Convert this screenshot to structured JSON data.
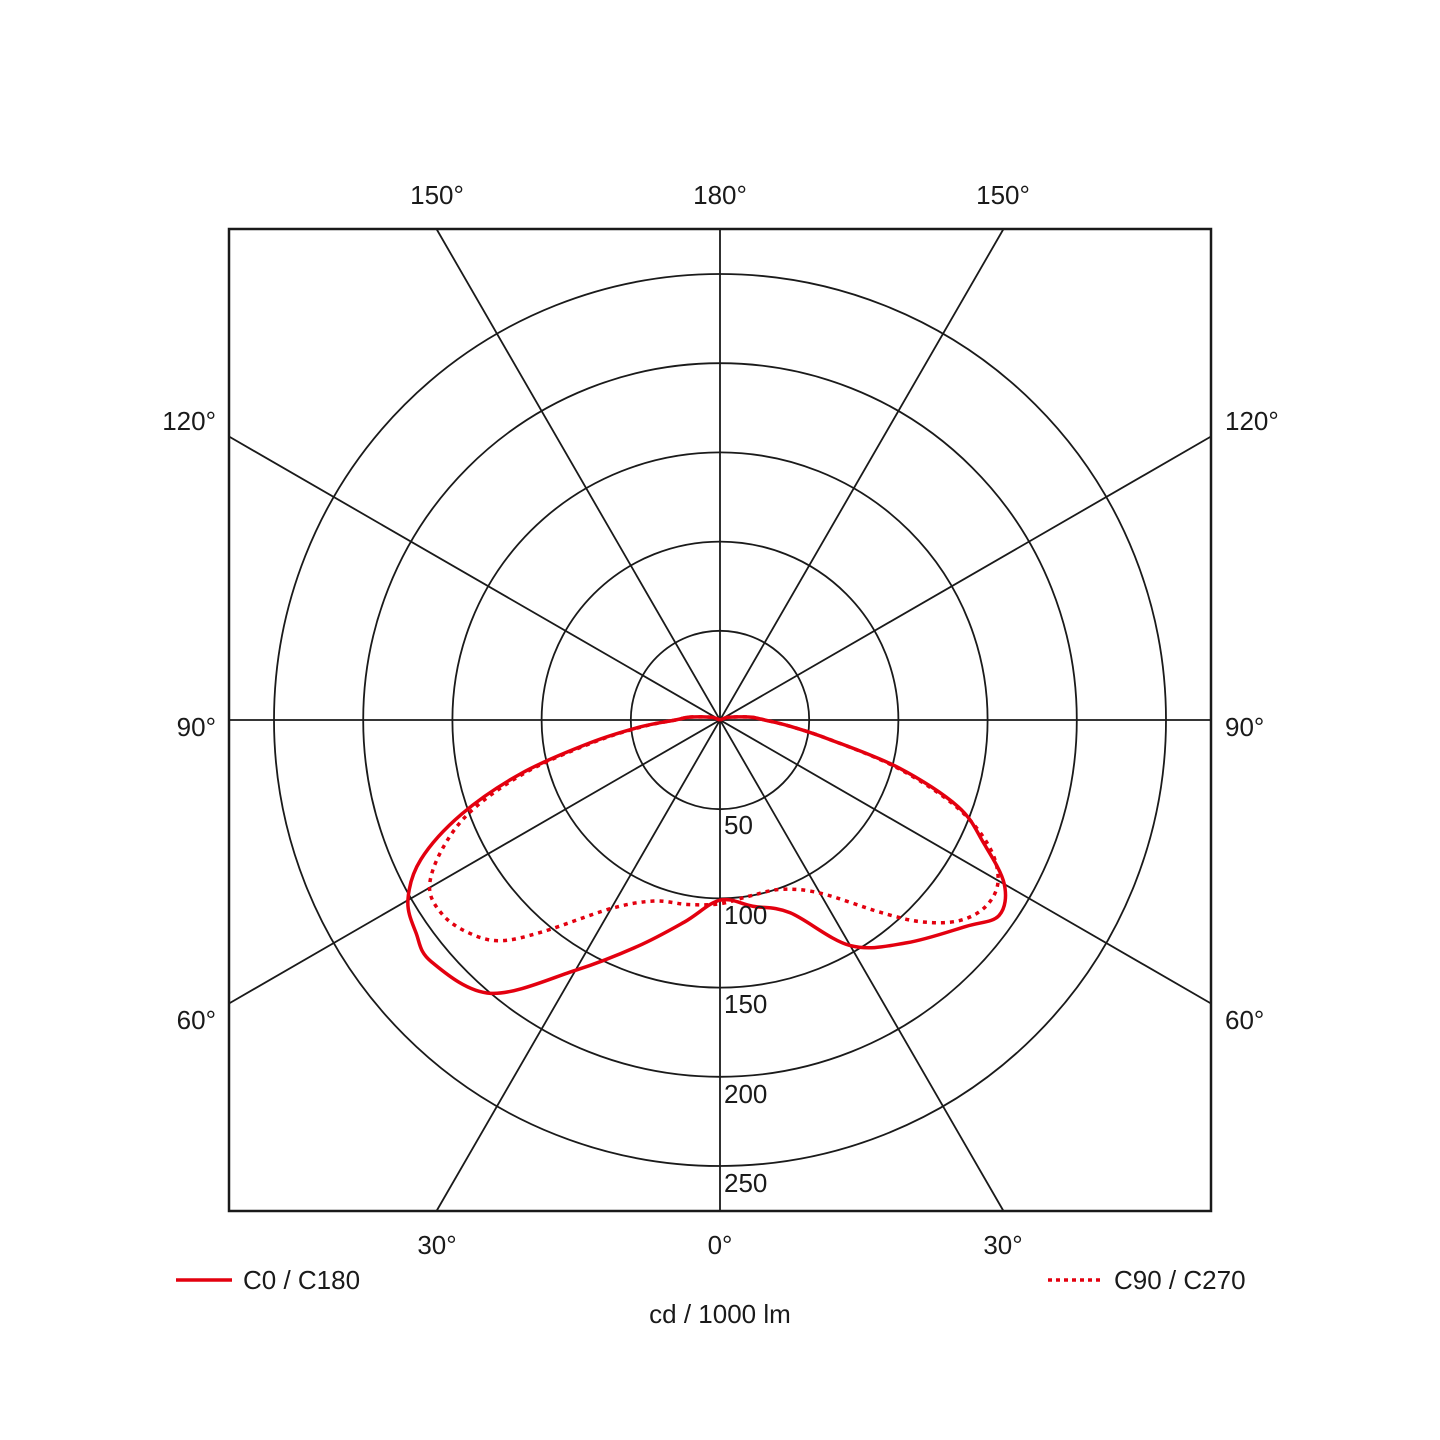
{
  "chart_data": {
    "type": "polar",
    "unit_label": "cd / 1000 lm",
    "radial_ticks": [
      50,
      100,
      150,
      200,
      250
    ],
    "radial_max": 275,
    "angle_labels": {
      "top": [
        "150°",
        "180°",
        "150°"
      ],
      "left": [
        "120°",
        "90°",
        "60°"
      ],
      "right": [
        "120°",
        "90°",
        "60°"
      ],
      "bottom": [
        "30°",
        "0°",
        "30°"
      ]
    },
    "grid": true,
    "legend_placement": "bottom",
    "color": "#e3000f",
    "series": [
      {
        "name": "C0 / C180",
        "style": "solid",
        "gamma": [
          0,
          10,
          20,
          30,
          40,
          50,
          55,
          60,
          65,
          70,
          75,
          80,
          85,
          90,
          95,
          100,
          110
        ],
        "left": [
          101,
          115,
          135,
          162,
          200,
          211,
          208,
          202,
          185,
          154,
          115,
          74,
          45,
          25,
          18,
          10,
          4
        ],
        "right": [
          101,
          106,
          115,
          146,
          163,
          180,
          191,
          184,
          163,
          142,
          104,
          62,
          39,
          25,
          18,
          10,
          4
        ]
      },
      {
        "name": "C90 / C270",
        "style": "dotted",
        "gamma": [
          0,
          10,
          20,
          30,
          40,
          45,
          50,
          55,
          60,
          65,
          70,
          75,
          80,
          85,
          90,
          95,
          100,
          110
        ],
        "left": [
          103,
          105,
          108,
          122,
          155,
          175,
          185,
          190,
          188,
          172,
          148,
          112,
          72,
          44,
          25,
          18,
          10,
          4
        ],
        "right": [
          103,
          100,
          101,
          112,
          141,
          160,
          175,
          182,
          180,
          166,
          140,
          102,
          62,
          39,
          25,
          18,
          10,
          4
        ]
      }
    ]
  }
}
